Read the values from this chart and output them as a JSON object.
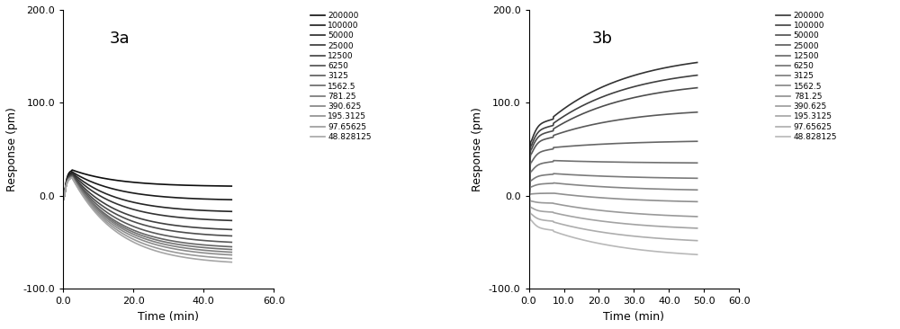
{
  "labels": [
    "200000",
    "100000",
    "50000",
    "25000",
    "12500",
    "6250",
    "3125",
    "1562.5",
    "781.25",
    "390.625",
    "195.3125",
    "97.65625",
    "48.828125"
  ],
  "panel_a_label": "3a",
  "panel_b_label": "3b",
  "xlabel": "Time (min)",
  "ylabel": "Response (pm)",
  "xlim": [
    0,
    60.0
  ],
  "ylim": [
    -100.0,
    200.0
  ],
  "xticks_a": [
    0.0,
    20.0,
    40.0,
    60.0
  ],
  "xticks_b": [
    0.0,
    10.0,
    20.0,
    30.0,
    40.0,
    50.0,
    60.0
  ],
  "yticks": [
    -100.0,
    0.0,
    100.0,
    200.0
  ],
  "bg_color": "#ffffff",
  "panel_a_finals": [
    10,
    -5,
    -18,
    -28,
    -38,
    -45,
    -52,
    -57,
    -60,
    -63,
    -66,
    -70,
    -74
  ],
  "panel_a_peaks": [
    28,
    26,
    25,
    24,
    23,
    22,
    22,
    21,
    21,
    21,
    20,
    20,
    20
  ],
  "panel_b_finals": [
    155,
    140,
    125,
    95,
    60,
    35,
    18,
    5,
    -8,
    -25,
    -38,
    -52,
    -68
  ],
  "panel_b_peaks": [
    85,
    78,
    72,
    65,
    52,
    38,
    24,
    14,
    3,
    -8,
    -18,
    -28,
    -38
  ],
  "colors_a": [
    "0.05",
    "0.10",
    "0.15",
    "0.20",
    "0.25",
    "0.30",
    "0.35",
    "0.40",
    "0.45",
    "0.50",
    "0.55",
    "0.60",
    "0.65"
  ],
  "colors_b": [
    "0.20",
    "0.25",
    "0.30",
    "0.35",
    "0.40",
    "0.45",
    "0.50",
    "0.55",
    "0.60",
    "0.65",
    "0.70",
    "0.72",
    "0.74"
  ]
}
